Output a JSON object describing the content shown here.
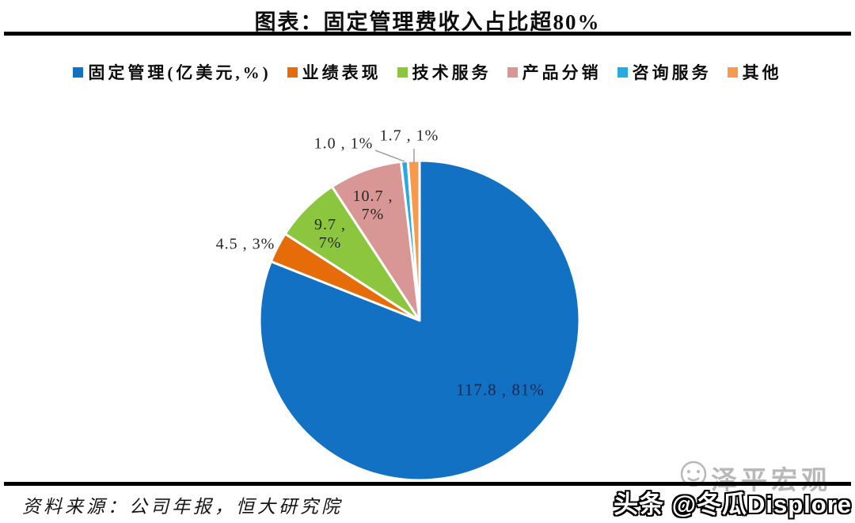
{
  "page": {
    "title": "图表：固定管理费收入占比超80%",
    "source_note": "资料来源：公司年报，恒大研究院"
  },
  "watermark": {
    "badge_text": "头条 @冬瓜Displore",
    "logo_text": "泽平宏观",
    "smiley_icon": "smiley-face-outline"
  },
  "chart_data": {
    "type": "pie",
    "title": "图表：固定管理费收入占比超80%",
    "legend_position": "top",
    "start_angle_deg": 0,
    "direction": "clockwise",
    "border_color": "#ffffff",
    "slices": [
      {
        "name": "固定管理(亿美元,%)",
        "value": 117.8,
        "pct": "81%",
        "color": "#1371C3",
        "label": "117.8 , 81%"
      },
      {
        "name": "业绩表现",
        "value": 4.5,
        "pct": "3%",
        "color": "#E66C0A",
        "label": "4.5 , 3%"
      },
      {
        "name": "技术服务",
        "value": 9.7,
        "pct": "7%",
        "color": "#8CC63F",
        "label": "9.7 ,\n7%"
      },
      {
        "name": "产品分销",
        "value": 10.7,
        "pct": "7%",
        "color": "#D89795",
        "label": "10.7 ,\n7%"
      },
      {
        "name": "咨询服务",
        "value": 1.0,
        "pct": "1%",
        "color": "#27A9E1",
        "label": "1.0 , 1%"
      },
      {
        "name": "其他",
        "value": 1.7,
        "pct": "1%",
        "color": "#F79A4D",
        "label": "1.7 , 1%"
      }
    ]
  }
}
